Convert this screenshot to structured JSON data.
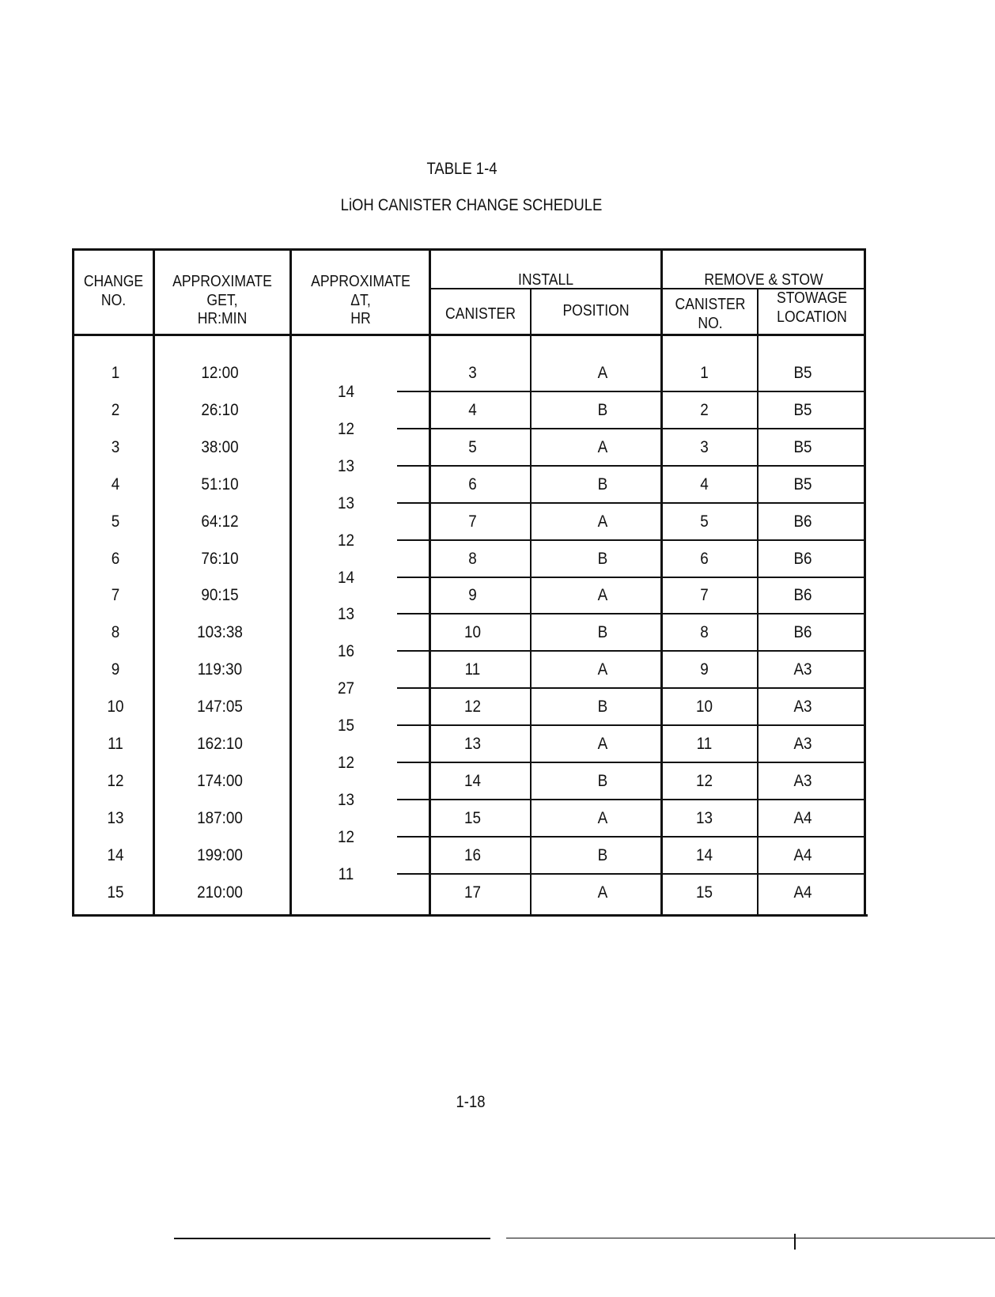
{
  "document": {
    "table_number": "TABLE 1-4",
    "table_title": "LiOH CANISTER CHANGE SCHEDULE",
    "page_number": "1-18"
  },
  "table": {
    "headers": {
      "change_no": [
        "CHANGE",
        "NO."
      ],
      "get": [
        "APPROXIMATE",
        "GET,",
        "HR:MIN"
      ],
      "delta_t": [
        "APPROXIMATE",
        "ΔT,",
        "HR"
      ],
      "install": "INSTALL",
      "install_canister": "CANISTER",
      "install_position": "POSITION",
      "remove": "REMOVE & STOW",
      "remove_canister": [
        "CANISTER",
        "NO."
      ],
      "stowage": [
        "STOWAGE",
        "LOCATION"
      ]
    },
    "rows": [
      {
        "change": "1",
        "get": "12:00",
        "canister": "3",
        "position": "A",
        "removed": "1",
        "stowage": "B5"
      },
      {
        "change": "2",
        "get": "26:10",
        "canister": "4",
        "position": "B",
        "removed": "2",
        "stowage": "B5"
      },
      {
        "change": "3",
        "get": "38:00",
        "canister": "5",
        "position": "A",
        "removed": "3",
        "stowage": "B5"
      },
      {
        "change": "4",
        "get": "51:10",
        "canister": "6",
        "position": "B",
        "removed": "4",
        "stowage": "B5"
      },
      {
        "change": "5",
        "get": "64:12",
        "canister": "7",
        "position": "A",
        "removed": "5",
        "stowage": "B6"
      },
      {
        "change": "6",
        "get": "76:10",
        "canister": "8",
        "position": "B",
        "removed": "6",
        "stowage": "B6"
      },
      {
        "change": "7",
        "get": "90:15",
        "canister": "9",
        "position": "A",
        "removed": "7",
        "stowage": "B6"
      },
      {
        "change": "8",
        "get": "103:38",
        "canister": "10",
        "position": "B",
        "removed": "8",
        "stowage": "B6"
      },
      {
        "change": "9",
        "get": "119:30",
        "canister": "11",
        "position": "A",
        "removed": "9",
        "stowage": "A3"
      },
      {
        "change": "10",
        "get": "147:05",
        "canister": "12",
        "position": "B",
        "removed": "10",
        "stowage": "A3"
      },
      {
        "change": "11",
        "get": "162:10",
        "canister": "13",
        "position": "A",
        "removed": "11",
        "stowage": "A3"
      },
      {
        "change": "12",
        "get": "174:00",
        "canister": "14",
        "position": "B",
        "removed": "12",
        "stowage": "A3"
      },
      {
        "change": "13",
        "get": "187:00",
        "canister": "15",
        "position": "A",
        "removed": "13",
        "stowage": "A4"
      },
      {
        "change": "14",
        "get": "199:00",
        "canister": "16",
        "position": "B",
        "removed": "14",
        "stowage": "A4"
      },
      {
        "change": "15",
        "get": "210:00",
        "canister": "17",
        "position": "A",
        "removed": "15",
        "stowage": "A4"
      }
    ],
    "delta_t": [
      "14",
      "12",
      "13",
      "13",
      "12",
      "14",
      "13",
      "16",
      "27",
      "15",
      "12",
      "13",
      "12",
      "11"
    ]
  }
}
